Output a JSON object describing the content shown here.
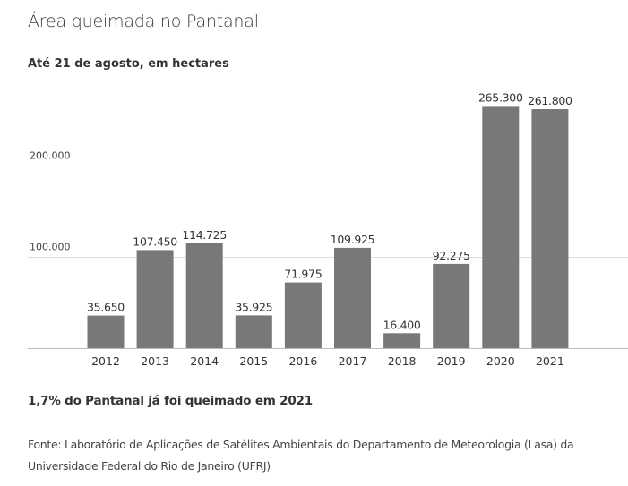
{
  "header": {
    "title": "Área queimada no Pantanal",
    "subtitle": "Até 21 de agosto, em hectares"
  },
  "chart_data": {
    "type": "bar",
    "title": "Área queimada no Pantanal",
    "subtitle": "Até 21 de agosto, em hectares",
    "xlabel": "",
    "ylabel": "hectares",
    "categories": [
      "2012",
      "2013",
      "2014",
      "2015",
      "2016",
      "2017",
      "2018",
      "2019",
      "2020",
      "2021"
    ],
    "values": [
      35650,
      107450,
      114725,
      35925,
      71975,
      109925,
      16400,
      92275,
      265300,
      261800
    ],
    "value_labels": [
      "35.650",
      "107.450",
      "114.725",
      "35.925",
      "71.975",
      "109.925",
      "16.400",
      "92.275",
      "265.300",
      "261.800"
    ],
    "yticks": [
      100000,
      200000
    ],
    "ytick_labels": [
      "100.000",
      "200.000"
    ],
    "ylim": [
      0,
      265300
    ],
    "grid": true,
    "legend": "none",
    "colors": {
      "bar": "#787878",
      "grid": "#dddddd",
      "axis": "#bbbbbb"
    }
  },
  "footer": {
    "note": "1,7% do Pantanal já foi queimado em 2021",
    "source": "Fonte: Laboratório de Aplicações de Satélites Ambientais do Departamento de Meteorologia (Lasa) da Universidade Federal do Rio de Janeiro (UFRJ)"
  }
}
